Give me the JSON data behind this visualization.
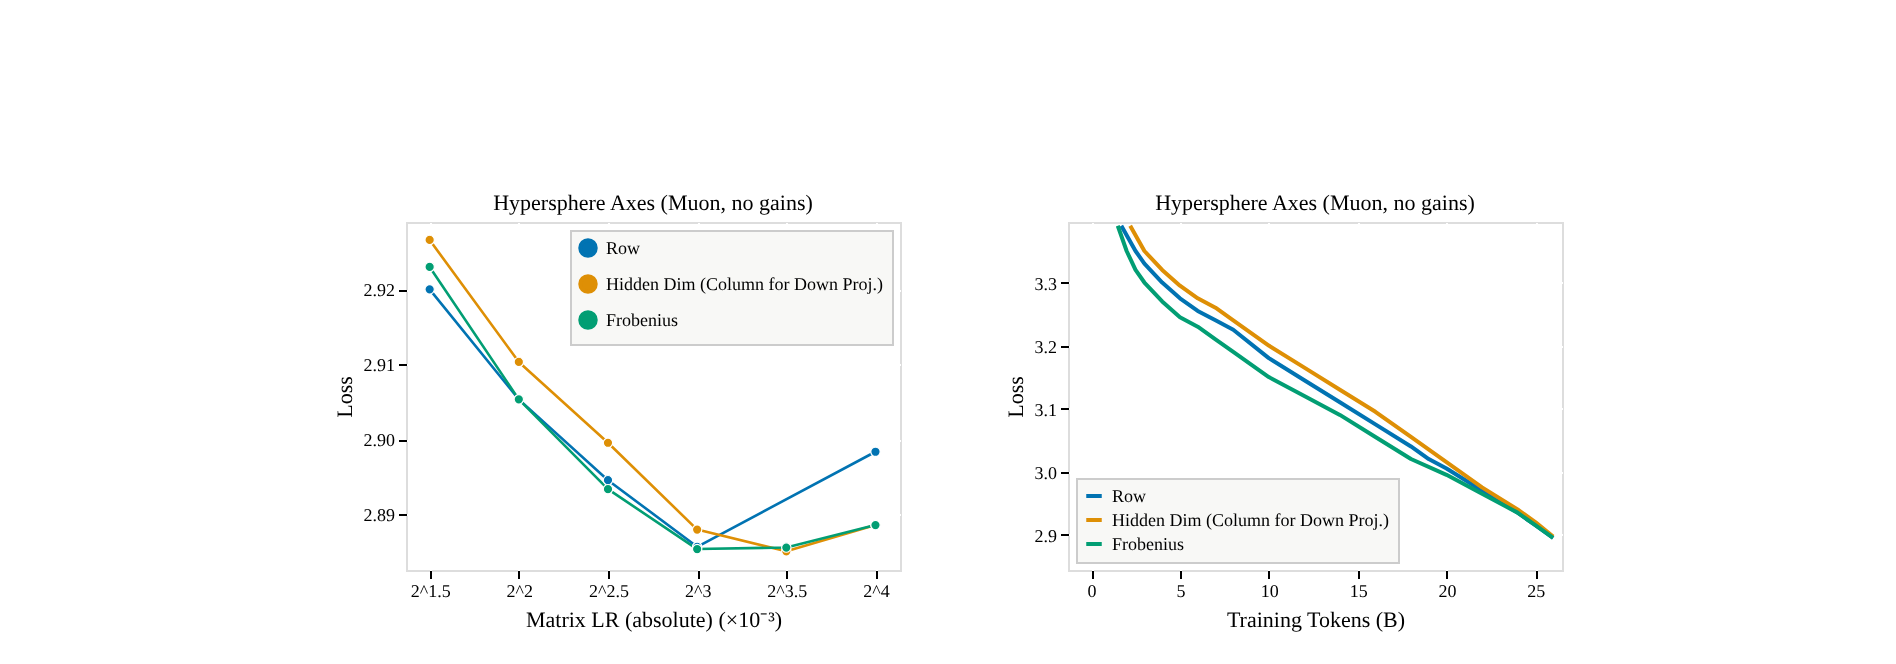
{
  "chart_data": [
    {
      "type": "line",
      "title": "Hypersphere Axes (Muon, no gains)",
      "xlabel": "Matrix LR (absolute)  (×10⁻³)",
      "ylabel": "Loss",
      "log": "x",
      "marker": "circle",
      "grid": true,
      "legend": "top right",
      "x": [
        2.828427,
        4,
        5.656854,
        8,
        11.313708,
        16
      ],
      "xlim": [
        2.58,
        17.6
      ],
      "xticks": [
        {
          "value": 2.828427,
          "label": "2^1.5"
        },
        {
          "value": 4,
          "label": "2^2"
        },
        {
          "value": 5.656854,
          "label": "2^2.5"
        },
        {
          "value": 8,
          "label": "2^3"
        },
        {
          "value": 11.313708,
          "label": "2^3.5"
        },
        {
          "value": 16,
          "label": "2^4"
        }
      ],
      "ylim": [
        2.8825,
        2.929
      ],
      "yticks": [
        {
          "value": 2.89,
          "label": "2.89"
        },
        {
          "value": 2.9,
          "label": "2.90"
        },
        {
          "value": 2.91,
          "label": "2.91"
        },
        {
          "value": 2.92,
          "label": "2.92"
        }
      ],
      "series": [
        {
          "name": "Row",
          "color": "#0173b2",
          "values": [
            2.92,
            2.9053,
            2.8945,
            2.8856,
            null,
            2.8983
          ]
        },
        {
          "name": "Hidden Dim (Column for Down Proj.)",
          "color": "#de8f05",
          "values": [
            2.9266,
            2.9103,
            2.8995,
            2.8879,
            2.885,
            2.8885
          ]
        },
        {
          "name": "Frobenius",
          "color": "#029e73",
          "values": [
            2.923,
            2.9053,
            2.8933,
            2.8853,
            2.8855,
            2.8885
          ]
        }
      ]
    },
    {
      "type": "line",
      "title": "Hypersphere Axes (Muon, no gains)",
      "xlabel": "Training Tokens (B)",
      "ylabel": "Loss",
      "marker": "none",
      "grid": true,
      "legend": "bottom left",
      "xlim": [
        -1.3,
        26.5
      ],
      "xticks": [
        0,
        5,
        10,
        15,
        20,
        25
      ],
      "ylim": [
        2.844,
        3.396
      ],
      "yticks": [
        {
          "value": 2.9,
          "label": "2.9"
        },
        {
          "value": 3.0,
          "label": "3.0"
        },
        {
          "value": 3.1,
          "label": "3.1"
        },
        {
          "value": 3.2,
          "label": "3.2"
        },
        {
          "value": 3.3,
          "label": "3.3"
        }
      ],
      "series": [
        {
          "name": "Row",
          "color": "#0173b2",
          "x": [
            1.7,
            2.5,
            3,
            4,
            5,
            6,
            7,
            8,
            10,
            12,
            14,
            16,
            18,
            19,
            20,
            22,
            24,
            25,
            26
          ],
          "values": [
            3.39,
            3.35,
            3.33,
            3.3,
            3.275,
            3.255,
            3.24,
            3.225,
            3.18,
            3.145,
            3.11,
            3.075,
            3.04,
            3.02,
            3.005,
            2.97,
            2.935,
            2.915,
            2.895
          ]
        },
        {
          "name": "Hidden Dim (Column for Down Proj.)",
          "color": "#de8f05",
          "x": [
            2.2,
            3,
            4,
            5,
            6,
            7,
            8,
            10,
            12,
            14,
            16,
            18,
            20,
            22,
            24,
            25,
            26
          ],
          "values": [
            3.39,
            3.35,
            3.32,
            3.295,
            3.275,
            3.26,
            3.24,
            3.2,
            3.165,
            3.13,
            3.095,
            3.055,
            3.015,
            2.975,
            2.94,
            2.92,
            2.897
          ]
        },
        {
          "name": "Frobenius",
          "color": "#029e73",
          "x": [
            1.5,
            2,
            2.5,
            3,
            4,
            5,
            6,
            7,
            8,
            10,
            12,
            14,
            16,
            18,
            20,
            22,
            24,
            25,
            26
          ],
          "values": [
            3.39,
            3.35,
            3.32,
            3.3,
            3.27,
            3.245,
            3.23,
            3.21,
            3.19,
            3.15,
            3.12,
            3.09,
            3.055,
            3.02,
            2.995,
            2.965,
            2.935,
            2.915,
            2.895
          ]
        }
      ]
    }
  ]
}
